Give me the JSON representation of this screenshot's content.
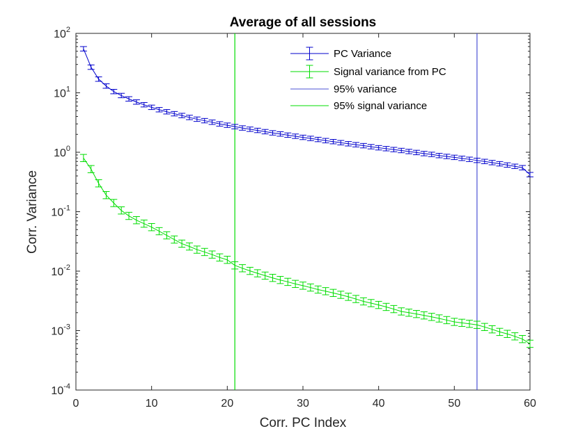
{
  "chart_data": {
    "type": "line",
    "title": "Average of all sessions",
    "xlabel": "Corr. PC Index",
    "ylabel": "Corr. Variance",
    "xlim": [
      0,
      60
    ],
    "ylim": [
      0.0001,
      100
    ],
    "yscale": "log",
    "x_ticks": [
      "0",
      "10",
      "20",
      "30",
      "40",
      "50",
      "60"
    ],
    "y_ticks": [
      {
        "base": "10",
        "exp": "-4"
      },
      {
        "base": "10",
        "exp": "-3"
      },
      {
        "base": "10",
        "exp": "-2"
      },
      {
        "base": "10",
        "exp": "-1"
      },
      {
        "base": "10",
        "exp": "0"
      },
      {
        "base": "10",
        "exp": "1"
      },
      {
        "base": "10",
        "exp": "2"
      }
    ],
    "grid": false,
    "legend_position": "top-right",
    "x": [
      1,
      2,
      3,
      4,
      5,
      6,
      7,
      8,
      9,
      10,
      11,
      12,
      13,
      14,
      15,
      16,
      17,
      18,
      19,
      20,
      21,
      22,
      23,
      24,
      25,
      26,
      27,
      28,
      29,
      30,
      31,
      32,
      33,
      34,
      35,
      36,
      37,
      38,
      39,
      40,
      41,
      42,
      43,
      44,
      45,
      46,
      47,
      48,
      49,
      50,
      51,
      52,
      53,
      54,
      55,
      56,
      57,
      58,
      59,
      60
    ],
    "series": [
      {
        "name": "PC Variance",
        "color": "#0000cc",
        "kind": "errorbar",
        "values": [
          55,
          27,
          17,
          13,
          10.5,
          9.0,
          7.9,
          7.0,
          6.3,
          5.7,
          5.2,
          4.8,
          4.45,
          4.15,
          3.85,
          3.6,
          3.4,
          3.2,
          3.0,
          2.85,
          2.7,
          2.56,
          2.44,
          2.33,
          2.22,
          2.12,
          2.03,
          1.94,
          1.86,
          1.78,
          1.71,
          1.64,
          1.57,
          1.51,
          1.45,
          1.39,
          1.34,
          1.29,
          1.24,
          1.19,
          1.15,
          1.11,
          1.07,
          1.03,
          0.99,
          0.95,
          0.92,
          0.88,
          0.85,
          0.82,
          0.79,
          0.76,
          0.73,
          0.7,
          0.67,
          0.64,
          0.61,
          0.58,
          0.55,
          0.42
        ],
        "error_factor": 1.09
      },
      {
        "name": "Signal variance from PC",
        "color": "#00dd00",
        "kind": "errorbar",
        "values": [
          0.8,
          0.52,
          0.3,
          0.19,
          0.14,
          0.105,
          0.085,
          0.072,
          0.063,
          0.055,
          0.047,
          0.04,
          0.034,
          0.029,
          0.026,
          0.023,
          0.021,
          0.019,
          0.017,
          0.0155,
          0.0125,
          0.0112,
          0.0101,
          0.0092,
          0.0084,
          0.0077,
          0.0071,
          0.0066,
          0.0061,
          0.0057,
          0.0053,
          0.0049,
          0.0046,
          0.0043,
          0.004,
          0.0037,
          0.0034,
          0.0031,
          0.0029,
          0.0027,
          0.0025,
          0.0023,
          0.0021,
          0.002,
          0.0019,
          0.0018,
          0.0017,
          0.0016,
          0.0015,
          0.0014,
          0.00135,
          0.0013,
          0.00125,
          0.00115,
          0.00105,
          0.00095,
          0.00088,
          0.0008,
          0.00072,
          0.0006
        ],
        "error_factor": 1.15
      },
      {
        "name": "95% variance",
        "color": "#4b50d4",
        "kind": "vline",
        "x": 53
      },
      {
        "name": "95% signal variance",
        "color": "#00dd00",
        "kind": "vline",
        "x": 21
      }
    ]
  }
}
